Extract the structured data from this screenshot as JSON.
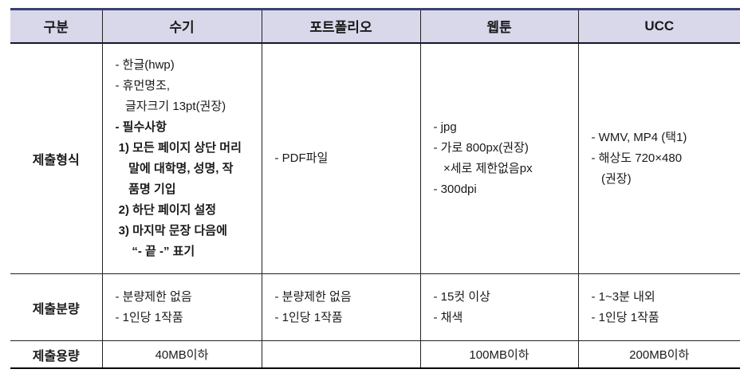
{
  "table": {
    "columns": [
      "구분",
      "수기",
      "포트폴리오",
      "웹툰",
      "UCC"
    ],
    "rows": [
      {
        "label": "제출형식",
        "align": "left",
        "cells": [
          {
            "lines": [
              {
                "text": "- 한글(hwp)",
                "bold": false
              },
              {
                "text": "- 휴먼명조,",
                "bold": false
              },
              {
                "text": "   글자크기 13pt(권장)",
                "bold": false
              },
              {
                "text": "- 필수사항",
                "bold": true
              },
              {
                "text": " 1) 모든 페이지 상단 머리",
                "bold": true
              },
              {
                "text": "    말에 대학명, 성명, 작",
                "bold": true
              },
              {
                "text": "    품명 기입",
                "bold": true
              },
              {
                "text": " 2) 하단 페이지 설정",
                "bold": true
              },
              {
                "text": " 3) 마지막 문장 다음에",
                "bold": true
              },
              {
                "text": "     “- 끝 -” 표기",
                "bold": true
              }
            ]
          },
          {
            "lines": [
              {
                "text": "- PDF파일",
                "bold": false
              }
            ]
          },
          {
            "lines": [
              {
                "text": "- jpg",
                "bold": false
              },
              {
                "text": "- 가로 800px(권장)",
                "bold": false
              },
              {
                "text": "   ×세로 제한없음px",
                "bold": false
              },
              {
                "text": "- 300dpi",
                "bold": false
              }
            ]
          },
          {
            "lines": [
              {
                "text": "- WMV, MP4 (택1)",
                "bold": false
              },
              {
                "text": "- 해상도 720×480",
                "bold": false
              },
              {
                "text": "   (권장)",
                "bold": false
              }
            ]
          }
        ]
      },
      {
        "label": "제출분량",
        "align": "left",
        "cells": [
          {
            "lines": [
              {
                "text": "- 분량제한 없음",
                "bold": false
              },
              {
                "text": "- 1인당 1작품",
                "bold": false
              }
            ]
          },
          {
            "lines": [
              {
                "text": "- 분량제한 없음",
                "bold": false
              },
              {
                "text": "- 1인당 1작품",
                "bold": false
              }
            ]
          },
          {
            "lines": [
              {
                "text": "- 15컷 이상",
                "bold": false
              },
              {
                "text": "- 채색",
                "bold": false
              }
            ]
          },
          {
            "lines": [
              {
                "text": "- 1~3분 내외",
                "bold": false
              },
              {
                "text": "- 1인당 1작품",
                "bold": false
              }
            ]
          }
        ]
      },
      {
        "label": "제출용량",
        "align": "center",
        "cells": [
          {
            "lines": [
              {
                "text": "40MB이하",
                "bold": false
              }
            ]
          },
          {
            "lines": []
          },
          {
            "lines": [
              {
                "text": "100MB이하",
                "bold": false
              }
            ]
          },
          {
            "lines": [
              {
                "text": "200MB이하",
                "bold": false
              }
            ]
          }
        ]
      }
    ]
  },
  "colors": {
    "header_bg": "#d9d8eb",
    "top_border": "#3a3f72",
    "grid_line": "#222222",
    "bottom_border": "#000000"
  }
}
